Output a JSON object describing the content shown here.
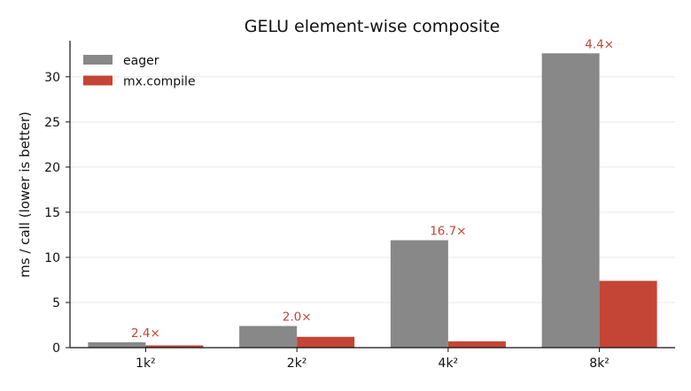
{
  "chart_data": {
    "type": "bar",
    "title": "GELU element-wise composite",
    "xlabel": "",
    "ylabel": "ms / call (lower is better)",
    "categories": [
      "1k²",
      "2k²",
      "4k²",
      "8k²"
    ],
    "series": [
      {
        "name": "eager",
        "color": "#888888",
        "values": [
          0.6,
          2.4,
          11.9,
          32.6
        ]
      },
      {
        "name": "mx.compile",
        "color": "#c44535",
        "values": [
          0.25,
          1.2,
          0.7,
          7.4
        ]
      }
    ],
    "annotations": [
      "2.4×",
      "2.0×",
      "16.7×",
      "4.4×"
    ],
    "annotation_color": "#c44535",
    "ylim": [
      0,
      34
    ],
    "yticks": [
      0,
      5,
      10,
      15,
      20,
      25,
      30
    ],
    "grid": "y",
    "legend_position": "top-left"
  }
}
